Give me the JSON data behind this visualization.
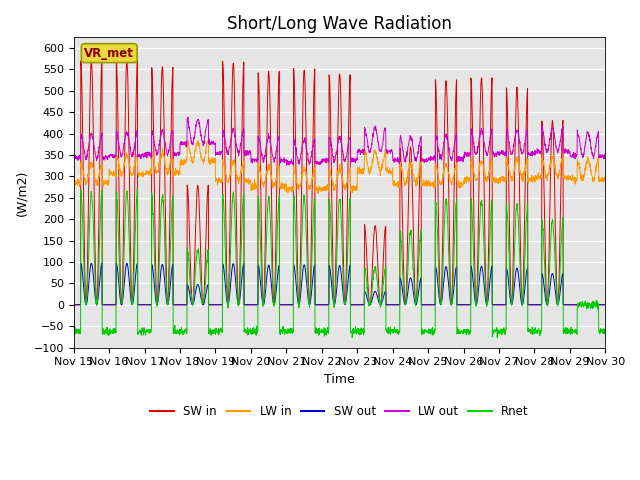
{
  "title": "Short/Long Wave Radiation",
  "ylabel": "(W/m2)",
  "xlabel": "Time",
  "label_text": "VR_met",
  "ylim": [
    -100,
    625
  ],
  "yticks": [
    -100,
    -50,
    0,
    50,
    100,
    150,
    200,
    250,
    300,
    350,
    400,
    450,
    500,
    550,
    600
  ],
  "xtick_labels": [
    "Nov 15",
    "Nov 16",
    "Nov 17",
    "Nov 18",
    "Nov 19",
    "Nov 20",
    "Nov 21",
    "Nov 22",
    "Nov 23",
    "Nov 24",
    "Nov 25",
    "Nov 26",
    "Nov 27",
    "Nov 28",
    "Nov 29",
    "Nov 30"
  ],
  "colors": {
    "SW_in": "#dd0000",
    "LW_in": "#ff9900",
    "SW_out": "#0000cc",
    "LW_out": "#cc00cc",
    "Rnet": "#00cc00"
  },
  "legend_labels": [
    "SW in",
    "LW in",
    "SW out",
    "LW out",
    "Rnet"
  ],
  "background_color": "#e5e5e5",
  "title_fontsize": 12,
  "label_fontsize": 9,
  "tick_fontsize": 8
}
